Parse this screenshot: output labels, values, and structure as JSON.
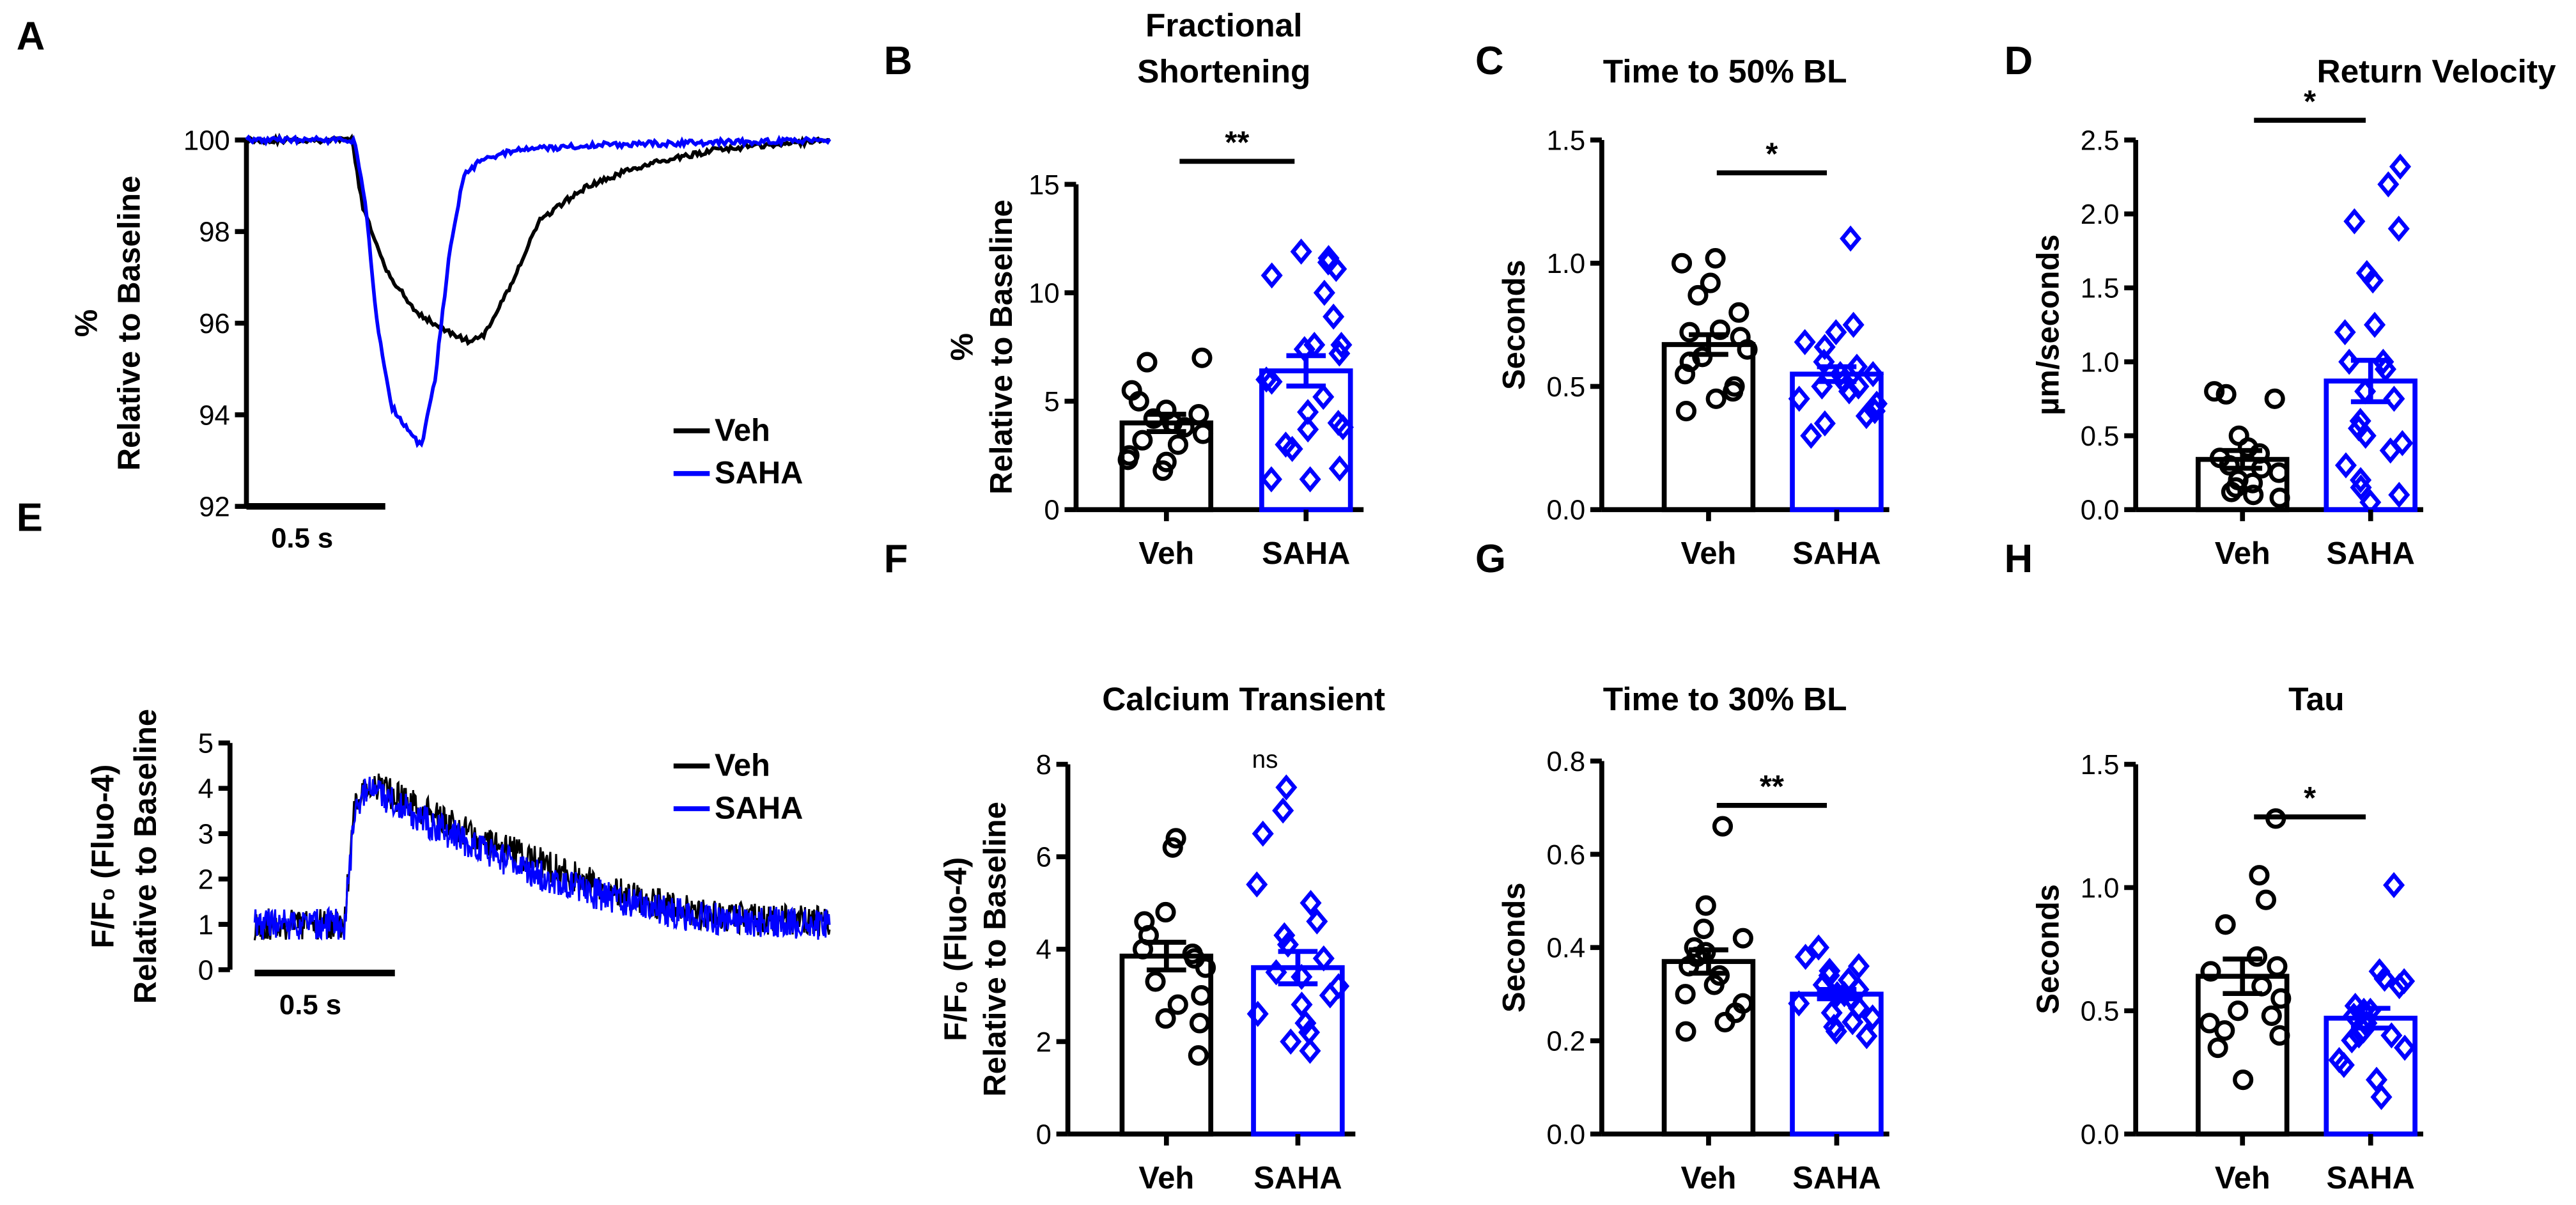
{
  "colors": {
    "veh": "#000000",
    "saha": "#0000ff"
  },
  "chart_data": [
    {
      "id": "A",
      "type": "line",
      "letter": "A",
      "title": "",
      "ylabel": [
        "%",
        "Relative to Baseline"
      ],
      "ylim": [
        92,
        100
      ],
      "yticks": [
        "92",
        "94",
        "96",
        "98",
        "100"
      ],
      "scalebar": "0.5 s",
      "legend": [
        "Veh",
        "SAHA"
      ],
      "series": [
        {
          "name": "Veh",
          "t": [
            0,
            0.38,
            0.42,
            0.5,
            0.6,
            0.7,
            0.8,
            0.85,
            0.95,
            1.05,
            1.2,
            1.4,
            1.7,
            2.1
          ],
          "y": [
            100,
            100,
            98.5,
            97.2,
            96.3,
            95.9,
            95.6,
            95.7,
            96.8,
            98.2,
            98.9,
            99.4,
            99.8,
            100
          ]
        },
        {
          "name": "SAHA",
          "t": [
            0,
            0.39,
            0.43,
            0.47,
            0.52,
            0.58,
            0.63,
            0.68,
            0.73,
            0.78,
            0.85,
            1.0,
            1.3,
            2.1
          ],
          "y": [
            100,
            100,
            98.5,
            96,
            94.2,
            93.7,
            93.3,
            94.8,
            97.5,
            99.2,
            99.6,
            99.8,
            99.9,
            100
          ]
        }
      ]
    },
    {
      "id": "B",
      "type": "bar",
      "letter": "B",
      "title": [
        "Fractional",
        "Shortening"
      ],
      "ylabel": [
        "%",
        "Relative to Baseline"
      ],
      "ylim": [
        0,
        15
      ],
      "yticks": [
        "0",
        "5",
        "10",
        "15"
      ],
      "categories": [
        "Veh",
        "SAHA"
      ],
      "significance": "**",
      "series": [
        {
          "name": "Veh",
          "mean": 4.0,
          "sem": 0.4,
          "points": [
            6.8,
            7.0,
            5.5,
            5.0,
            4.6,
            4.4,
            4.2,
            4.0,
            3.8,
            3.5,
            3.2,
            3.0,
            2.5,
            2.3,
            2.2,
            1.8
          ]
        },
        {
          "name": "SAHA",
          "mean": 6.4,
          "sem": 0.7,
          "points": [
            11.9,
            11.6,
            11.4,
            11.1,
            10.8,
            10.0,
            8.9,
            7.6,
            7.6,
            7.4,
            7.2,
            6.0,
            5.9,
            5.2,
            4.5,
            4.0,
            3.8,
            3.7,
            3.0,
            2.8,
            1.9,
            1.4,
            1.4
          ]
        }
      ]
    },
    {
      "id": "C",
      "type": "bar",
      "letter": "C",
      "title": [
        "Time to 50% BL"
      ],
      "ylabel": [
        "Seconds"
      ],
      "ylim": [
        0,
        1.5
      ],
      "yticks": [
        "0.0",
        "0.5",
        "1.0",
        "1.5"
      ],
      "categories": [
        "Veh",
        "SAHA"
      ],
      "significance": "*",
      "series": [
        {
          "name": "Veh",
          "mean": 0.67,
          "sem": 0.04,
          "points": [
            1.02,
            1.0,
            0.92,
            0.87,
            0.8,
            0.73,
            0.72,
            0.7,
            0.65,
            0.62,
            0.6,
            0.55,
            0.5,
            0.48,
            0.45,
            0.4
          ]
        },
        {
          "name": "SAHA",
          "mean": 0.55,
          "sem": 0.03,
          "points": [
            1.1,
            0.75,
            0.72,
            0.68,
            0.66,
            0.6,
            0.58,
            0.55,
            0.55,
            0.52,
            0.5,
            0.5,
            0.48,
            0.45,
            0.43,
            0.4,
            0.38,
            0.35,
            0.3
          ]
        }
      ]
    },
    {
      "id": "D",
      "type": "bar",
      "letter": "D",
      "title": [
        "Return Velocity"
      ],
      "ylabel": [
        "µm/seconds"
      ],
      "ylim": [
        0,
        2.5
      ],
      "yticks": [
        "0.0",
        "0.5",
        "1.0",
        "1.5",
        "2.0",
        "2.5"
      ],
      "categories": [
        "Veh",
        "SAHA"
      ],
      "significance": "*",
      "series": [
        {
          "name": "Veh",
          "mean": 0.34,
          "sem": 0.06,
          "points": [
            0.8,
            0.78,
            0.75,
            0.5,
            0.42,
            0.38,
            0.35,
            0.3,
            0.28,
            0.25,
            0.2,
            0.18,
            0.15,
            0.12,
            0.1,
            0.08
          ]
        },
        {
          "name": "SAHA",
          "mean": 0.87,
          "sem": 0.14,
          "points": [
            2.32,
            2.2,
            1.95,
            1.9,
            1.6,
            1.55,
            1.25,
            1.2,
            1.0,
            1.0,
            0.95,
            0.8,
            0.75,
            0.6,
            0.55,
            0.5,
            0.45,
            0.4,
            0.3,
            0.2,
            0.15,
            0.1,
            0.05
          ]
        }
      ]
    },
    {
      "id": "E",
      "type": "line",
      "letter": "E",
      "title": "",
      "ylabel": [
        "F/F₀ (Fluo-4)",
        "Relative to Baseline"
      ],
      "ylim": [
        0,
        5
      ],
      "yticks": [
        "0",
        "1",
        "2",
        "3",
        "4",
        "5"
      ],
      "scalebar": "0.5 s",
      "legend": [
        "Veh",
        "SAHA"
      ],
      "series": [
        {
          "name": "Veh",
          "t": [
            0,
            0.32,
            0.36,
            0.42,
            0.6,
            0.8,
            1.0,
            1.2,
            1.4,
            1.6,
            1.8,
            2.05
          ],
          "y": [
            1,
            1,
            3.8,
            4.1,
            3.5,
            2.9,
            2.4,
            1.9,
            1.5,
            1.25,
            1.1,
            1.05
          ]
        },
        {
          "name": "SAHA",
          "t": [
            0,
            0.32,
            0.36,
            0.42,
            0.6,
            0.8,
            1.0,
            1.2,
            1.4,
            1.6,
            1.8,
            2.05
          ],
          "y": [
            1,
            1,
            3.7,
            4.0,
            3.3,
            2.7,
            2.1,
            1.7,
            1.35,
            1.15,
            1.05,
            1.0
          ]
        }
      ]
    },
    {
      "id": "F",
      "type": "bar",
      "letter": "F",
      "title": [
        "Calcium Transient"
      ],
      "ylabel": [
        "F/F₀ (Fluo-4)",
        "Relative to Baseline"
      ],
      "ylim": [
        0,
        8
      ],
      "yticks": [
        "0",
        "2",
        "4",
        "6",
        "8"
      ],
      "categories": [
        "Veh",
        "SAHA"
      ],
      "significance": "ns",
      "series": [
        {
          "name": "Veh",
          "mean": 3.85,
          "sem": 0.3,
          "points": [
            6.4,
            6.2,
            4.8,
            4.6,
            4.3,
            4.0,
            3.9,
            3.8,
            3.6,
            3.3,
            3.0,
            2.8,
            2.5,
            2.4,
            1.7
          ]
        },
        {
          "name": "SAHA",
          "mean": 3.6,
          "sem": 0.35,
          "points": [
            7.5,
            7.0,
            6.5,
            5.4,
            5.0,
            4.6,
            4.3,
            4.1,
            3.8,
            3.5,
            3.4,
            3.2,
            3.0,
            2.8,
            2.6,
            2.4,
            2.2,
            2.0,
            1.8
          ]
        }
      ]
    },
    {
      "id": "G",
      "type": "bar",
      "letter": "G",
      "title": [
        "Time to 30% BL"
      ],
      "ylabel": [
        "Seconds"
      ],
      "ylim": [
        0,
        0.8
      ],
      "yticks": [
        "0.0",
        "0.2",
        "0.4",
        "0.6",
        "0.8"
      ],
      "categories": [
        "Veh",
        "SAHA"
      ],
      "significance": "**",
      "series": [
        {
          "name": "Veh",
          "mean": 0.37,
          "sem": 0.025,
          "points": [
            0.66,
            0.49,
            0.44,
            0.42,
            0.4,
            0.39,
            0.38,
            0.36,
            0.34,
            0.32,
            0.3,
            0.28,
            0.26,
            0.24,
            0.22
          ]
        },
        {
          "name": "SAHA",
          "mean": 0.3,
          "sem": 0.01,
          "points": [
            0.4,
            0.38,
            0.36,
            0.35,
            0.34,
            0.33,
            0.32,
            0.31,
            0.3,
            0.3,
            0.29,
            0.28,
            0.27,
            0.26,
            0.25,
            0.24,
            0.23,
            0.22,
            0.21
          ]
        }
      ]
    },
    {
      "id": "H",
      "type": "bar",
      "letter": "H",
      "title": [
        "Tau"
      ],
      "ylabel": [
        "Seconds"
      ],
      "ylim": [
        0,
        1.5
      ],
      "yticks": [
        "0.0",
        "0.5",
        "1.0",
        "1.5"
      ],
      "categories": [
        "Veh",
        "SAHA"
      ],
      "significance": "*",
      "series": [
        {
          "name": "Veh",
          "mean": 0.64,
          "sem": 0.07,
          "points": [
            1.28,
            1.05,
            0.95,
            0.85,
            0.72,
            0.68,
            0.66,
            0.6,
            0.55,
            0.5,
            0.48,
            0.45,
            0.42,
            0.4,
            0.35,
            0.22
          ]
        },
        {
          "name": "SAHA",
          "mean": 0.47,
          "sem": 0.04,
          "points": [
            1.01,
            0.66,
            0.63,
            0.62,
            0.6,
            0.52,
            0.5,
            0.5,
            0.48,
            0.45,
            0.42,
            0.4,
            0.4,
            0.38,
            0.35,
            0.3,
            0.28,
            0.22,
            0.15
          ]
        }
      ]
    }
  ]
}
